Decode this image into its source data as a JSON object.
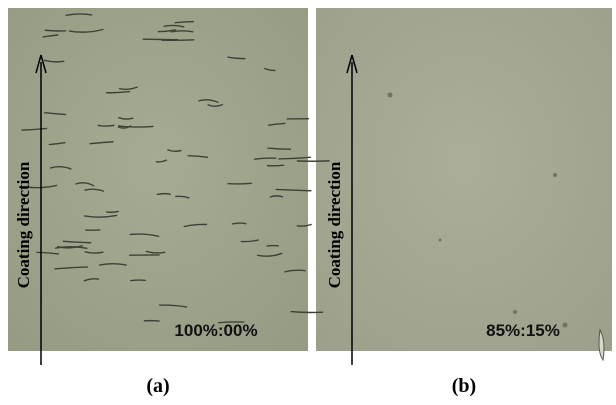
{
  "panels": [
    {
      "label": "(a)",
      "direction_label": "Coating direction",
      "ratio": "100%:00%"
    },
    {
      "label": "(b)",
      "direction_label": "Coating direction",
      "ratio": "85%:15%"
    }
  ]
}
